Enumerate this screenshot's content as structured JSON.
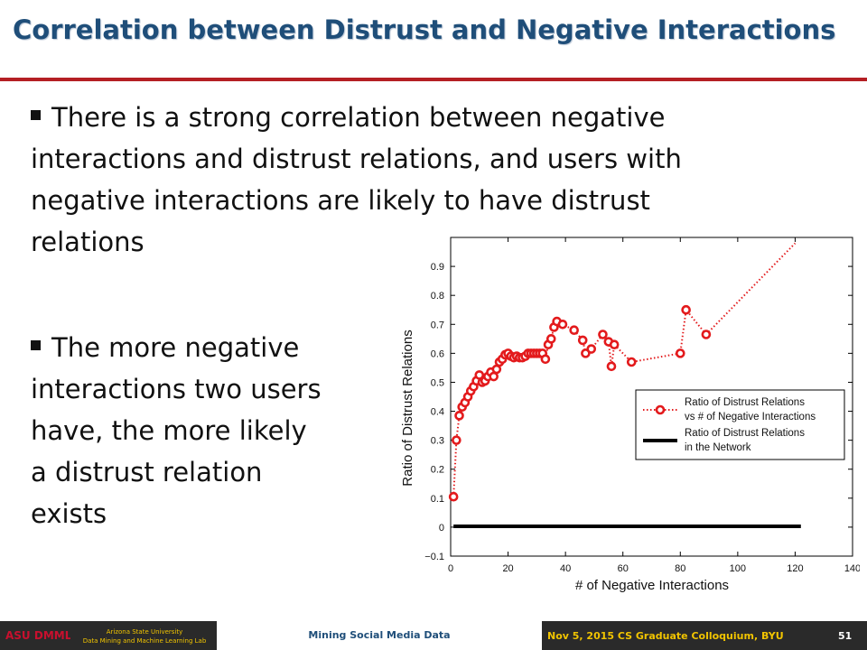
{
  "slide": {
    "title": "Correlation between Distrust and Negative Interactions",
    "bullets": [
      "There is a strong correlation between negative interactions and distrust relations, and users with negative interactions are likely to have distrust relations",
      "The more negative interactions two users have, the more likely a distrust relation exists"
    ],
    "bullet_lines": [
      [
        "There is a strong correlation between negative",
        "interactions and distrust relations, and users with",
        "negative interactions are likely to have distrust",
        "relations"
      ],
      [
        "The more negative",
        "interactions two users",
        "have, the more likely",
        "a distrust relation",
        "exists"
      ]
    ]
  },
  "footer": {
    "logo_text": "ASU DMML",
    "university": "Arizona State University",
    "lab": "Data Mining and Machine Learning Lab",
    "course": "Mining Social Media Data",
    "event": "Nov 5, 2015  CS Graduate Colloquium, BYU",
    "page": "51"
  },
  "colors": {
    "title": "#1f4e79",
    "rule": "#b41f24",
    "series": "#e31a1c",
    "baseline": "#000000",
    "footer_bg": "#2a2a2a",
    "footer_accent": "#f1c400"
  },
  "chart_data": {
    "type": "line",
    "xlabel": "# of Negative Interactions",
    "ylabel": "Ratio of Distrust Relations",
    "xlim": [
      0,
      140
    ],
    "ylim": [
      -0.1,
      1.0
    ],
    "xticks": [
      0,
      20,
      40,
      60,
      80,
      100,
      120,
      140
    ],
    "yticks": [
      -0.1,
      0,
      0.1,
      0.2,
      0.3,
      0.4,
      0.5,
      0.6,
      0.7,
      0.8,
      0.9
    ],
    "ytick_labels": [
      "−0.1",
      "0",
      "0.1",
      "0.2",
      "0.3",
      "0.4",
      "0.5",
      "0.6",
      "0.7",
      "0.8",
      "0.9"
    ],
    "legend_position": "right",
    "grid": false,
    "series": [
      {
        "name": "Ratio of Distrust Relations vs # of Negative Interactions",
        "legend_lines": [
          "Ratio of Distrust Relations",
          "vs # of Negative Interactions"
        ],
        "style": "dotted-circle-markers",
        "color": "#e31a1c",
        "x": [
          1,
          2,
          3,
          4,
          5,
          6,
          7,
          8,
          9,
          10,
          11,
          12,
          13,
          14,
          15,
          16,
          17,
          18,
          19,
          20,
          21,
          22,
          23,
          24,
          25,
          26,
          27,
          28,
          29,
          30,
          31,
          32,
          33,
          34,
          35,
          36,
          37,
          39,
          43,
          46,
          47,
          49,
          53,
          55,
          56,
          57,
          63,
          80,
          82,
          89
        ],
        "y": [
          0.105,
          0.3,
          0.385,
          0.415,
          0.43,
          0.45,
          0.47,
          0.485,
          0.505,
          0.525,
          0.5,
          0.505,
          0.52,
          0.535,
          0.52,
          0.545,
          0.57,
          0.58,
          0.595,
          0.6,
          0.59,
          0.585,
          0.59,
          0.585,
          0.585,
          0.59,
          0.6,
          0.6,
          0.6,
          0.6,
          0.6,
          0.6,
          0.58,
          0.63,
          0.65,
          0.69,
          0.71,
          0.7,
          0.68,
          0.645,
          0.6,
          0.615,
          0.665,
          0.64,
          0.555,
          0.63,
          0.57,
          0.6,
          0.75,
          0.665
        ],
        "tail_x": [
          89,
          120
        ],
        "tail_y": [
          0.665,
          0.98
        ]
      },
      {
        "name": "Ratio of Distrust Relations in the Network",
        "legend_lines": [
          "Ratio of Distrust Relations",
          " in the Network"
        ],
        "style": "solid",
        "color": "#000000",
        "x": [
          1,
          122
        ],
        "y": [
          0.003,
          0.003
        ]
      }
    ]
  }
}
